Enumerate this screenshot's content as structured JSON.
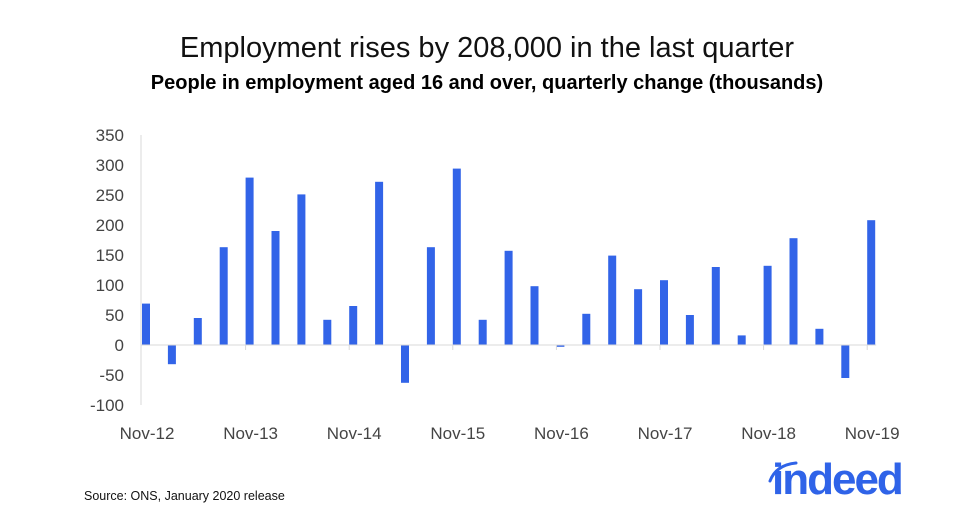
{
  "title": "Employment rises by 208,000 in the last quarter",
  "subtitle": "People in employment aged 16 and over, quarterly change (thousands)",
  "source": "Source: ONS, January 2020 release",
  "logo": "indeed",
  "colors": {
    "bar": "#3264e8",
    "axis": "#d9d9d9",
    "logo": "#2f63e8"
  },
  "chart_data": {
    "type": "bar",
    "title": "Employment rises by 208,000 in the last quarter",
    "subtitle": "People in employment aged 16 and over, quarterly change (thousands)",
    "xlabel": "",
    "ylabel": "",
    "ylim": [
      -100,
      350
    ],
    "yticks": [
      350,
      300,
      250,
      200,
      150,
      100,
      50,
      0,
      -50,
      -100
    ],
    "xtick_labels": [
      "Nov-12",
      "Nov-13",
      "Nov-14",
      "Nov-15",
      "Nov-16",
      "Nov-17",
      "Nov-18",
      "Nov-19"
    ],
    "xtick_every": 4,
    "grid": false,
    "legend": "none",
    "categories": [
      "Nov-12",
      "Feb-13",
      "May-13",
      "Aug-13",
      "Nov-13",
      "Feb-14",
      "May-14",
      "Aug-14",
      "Nov-14",
      "Feb-15",
      "May-15",
      "Aug-15",
      "Nov-15",
      "Feb-16",
      "May-16",
      "Aug-16",
      "Nov-16",
      "Feb-17",
      "May-17",
      "Aug-17",
      "Nov-17",
      "Feb-18",
      "May-18",
      "Aug-18",
      "Nov-18",
      "Feb-19",
      "May-19",
      "Aug-19",
      "Nov-19"
    ],
    "values": [
      69,
      -32,
      45,
      163,
      279,
      190,
      251,
      42,
      65,
      272,
      -63,
      163,
      294,
      42,
      157,
      98,
      -3,
      52,
      149,
      93,
      108,
      50,
      130,
      16,
      132,
      178,
      27,
      -55,
      208
    ]
  }
}
